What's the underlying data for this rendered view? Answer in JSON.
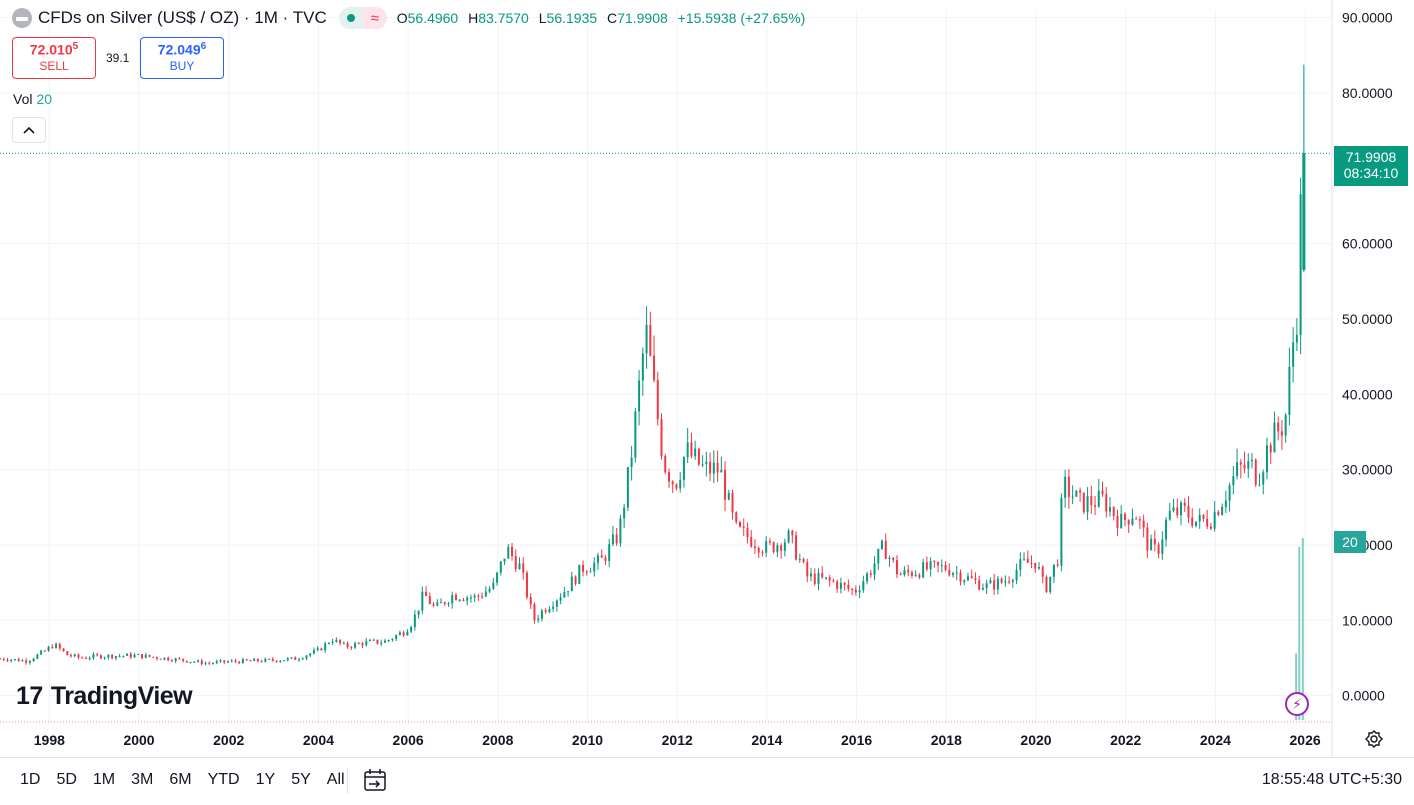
{
  "header": {
    "title": "CFDs on Silver (US$ / OZ) · 1M · TVC",
    "ohlc": [
      {
        "k": "O",
        "v": "56.4960"
      },
      {
        "k": "H",
        "v": "83.7570"
      },
      {
        "k": "L",
        "v": "56.1935"
      },
      {
        "k": "C",
        "v": "71.9908"
      }
    ],
    "change": "+15.5938 (+27.65%)"
  },
  "trade": {
    "sell_price_main": "72.010",
    "sell_price_sup": "5",
    "sell_label": "SELL",
    "spread": "39.1",
    "buy_price_main": "72.049",
    "buy_price_sup": "6",
    "buy_label": "BUY"
  },
  "volume": {
    "label": "Vol",
    "value": "20"
  },
  "watermark": {
    "mark": "17",
    "text": "TradingView"
  },
  "price_tag": {
    "price": "71.9908",
    "countdown": "08:34:10"
  },
  "volume_tag": "20",
  "colors": {
    "up": "#089981",
    "down": "#f23645",
    "volume": "#26a69a",
    "grid": "#f0f3fa",
    "text": "#131722"
  },
  "bottom_bar": {
    "ranges": [
      "1D",
      "5D",
      "1M",
      "3M",
      "6M",
      "YTD",
      "1Y",
      "5Y",
      "All"
    ],
    "clock": "18:55:48 UTC+5:30"
  },
  "icons": {
    "collapse": "chevron-up-icon",
    "calendar": "calendar-range-icon",
    "settings": "gear-icon",
    "flash": "lightning-icon"
  },
  "chart_data": {
    "type": "candlestick",
    "interval": "1M",
    "y_ticks": [
      0,
      10,
      20,
      30,
      40,
      50,
      60,
      80,
      90
    ],
    "y_tick_labels": [
      "0.0000",
      "10.0000",
      "20.0000",
      "30.0000",
      "40.0000",
      "50.0000",
      "60.0000",
      "80.0000",
      "90.0000"
    ],
    "ylim": [
      -3.5,
      91
    ],
    "x_ticks": [
      1998,
      2000,
      2002,
      2004,
      2006,
      2008,
      2010,
      2012,
      2014,
      2016,
      2018,
      2020,
      2022,
      2024,
      2026
    ],
    "xlim": [
      1996.9,
      2026.6
    ],
    "grid": true,
    "last_close": 71.9908,
    "series_close": [
      [
        1997.0,
        4.9
      ],
      [
        1997.5,
        4.6
      ],
      [
        1997.9,
        5.9
      ],
      [
        1998.1,
        6.8
      ],
      [
        1998.4,
        5.4
      ],
      [
        1998.7,
        5.0
      ],
      [
        1999.0,
        5.2
      ],
      [
        1999.5,
        5.3
      ],
      [
        2000.0,
        5.3
      ],
      [
        2000.5,
        5.0
      ],
      [
        2001.0,
        4.7
      ],
      [
        2001.5,
        4.3
      ],
      [
        2002.0,
        4.5
      ],
      [
        2002.5,
        4.6
      ],
      [
        2003.0,
        4.7
      ],
      [
        2003.5,
        4.9
      ],
      [
        2004.0,
        6.0
      ],
      [
        2004.3,
        7.5
      ],
      [
        2004.6,
        6.5
      ],
      [
        2005.0,
        7.0
      ],
      [
        2005.5,
        7.2
      ],
      [
        2005.9,
        8.5
      ],
      [
        2006.1,
        9.8
      ],
      [
        2006.35,
        13.5
      ],
      [
        2006.6,
        11.5
      ],
      [
        2007.0,
        13.4
      ],
      [
        2007.5,
        13.0
      ],
      [
        2007.9,
        14.5
      ],
      [
        2008.2,
        19.5
      ],
      [
        2008.5,
        17.0
      ],
      [
        2008.8,
        10.0
      ],
      [
        2009.0,
        11.3
      ],
      [
        2009.5,
        14.0
      ],
      [
        2009.9,
        17.0
      ],
      [
        2010.3,
        17.8
      ],
      [
        2010.7,
        21.5
      ],
      [
        2010.95,
        30.6
      ],
      [
        2011.3,
        48.5
      ],
      [
        2011.7,
        31.0
      ],
      [
        2011.95,
        28.0
      ],
      [
        2012.2,
        32.5
      ],
      [
        2012.6,
        30.0
      ],
      [
        2012.95,
        30.0
      ],
      [
        2013.3,
        22.0
      ],
      [
        2013.6,
        21.0
      ],
      [
        2014.0,
        19.5
      ],
      [
        2014.5,
        21.0
      ],
      [
        2014.9,
        15.8
      ],
      [
        2015.5,
        15.0
      ],
      [
        2015.95,
        13.8
      ],
      [
        2016.3,
        16.5
      ],
      [
        2016.6,
        19.8
      ],
      [
        2016.95,
        16.0
      ],
      [
        2017.5,
        16.8
      ],
      [
        2018.0,
        17.0
      ],
      [
        2018.5,
        15.5
      ],
      [
        2018.9,
        14.5
      ],
      [
        2019.3,
        15.2
      ],
      [
        2019.7,
        17.5
      ],
      [
        2020.0,
        17.8
      ],
      [
        2020.2,
        14.0
      ],
      [
        2020.5,
        18.5
      ],
      [
        2020.6,
        28.0
      ],
      [
        2021.0,
        25.5
      ],
      [
        2021.5,
        26.0
      ],
      [
        2021.9,
        23.0
      ],
      [
        2022.2,
        24.5
      ],
      [
        2022.5,
        20.0
      ],
      [
        2022.7,
        19.0
      ],
      [
        2022.95,
        24.0
      ],
      [
        2023.3,
        24.5
      ],
      [
        2023.6,
        23.0
      ],
      [
        2023.9,
        23.5
      ],
      [
        2024.2,
        26.5
      ],
      [
        2024.5,
        30.0
      ],
      [
        2024.8,
        30.5
      ],
      [
        2024.95,
        29.0
      ],
      [
        2025.2,
        33.5
      ],
      [
        2025.5,
        36.0
      ],
      [
        2025.6,
        38.0
      ],
      [
        2025.7,
        46.5
      ],
      [
        2025.8,
        48.0
      ],
      [
        2025.85,
        56.5
      ],
      [
        2025.95,
        71.99
      ]
    ],
    "volume": [
      [
        2025.8,
        7.5
      ],
      [
        2025.87,
        19.5
      ],
      [
        2025.95,
        20.5
      ]
    ]
  }
}
